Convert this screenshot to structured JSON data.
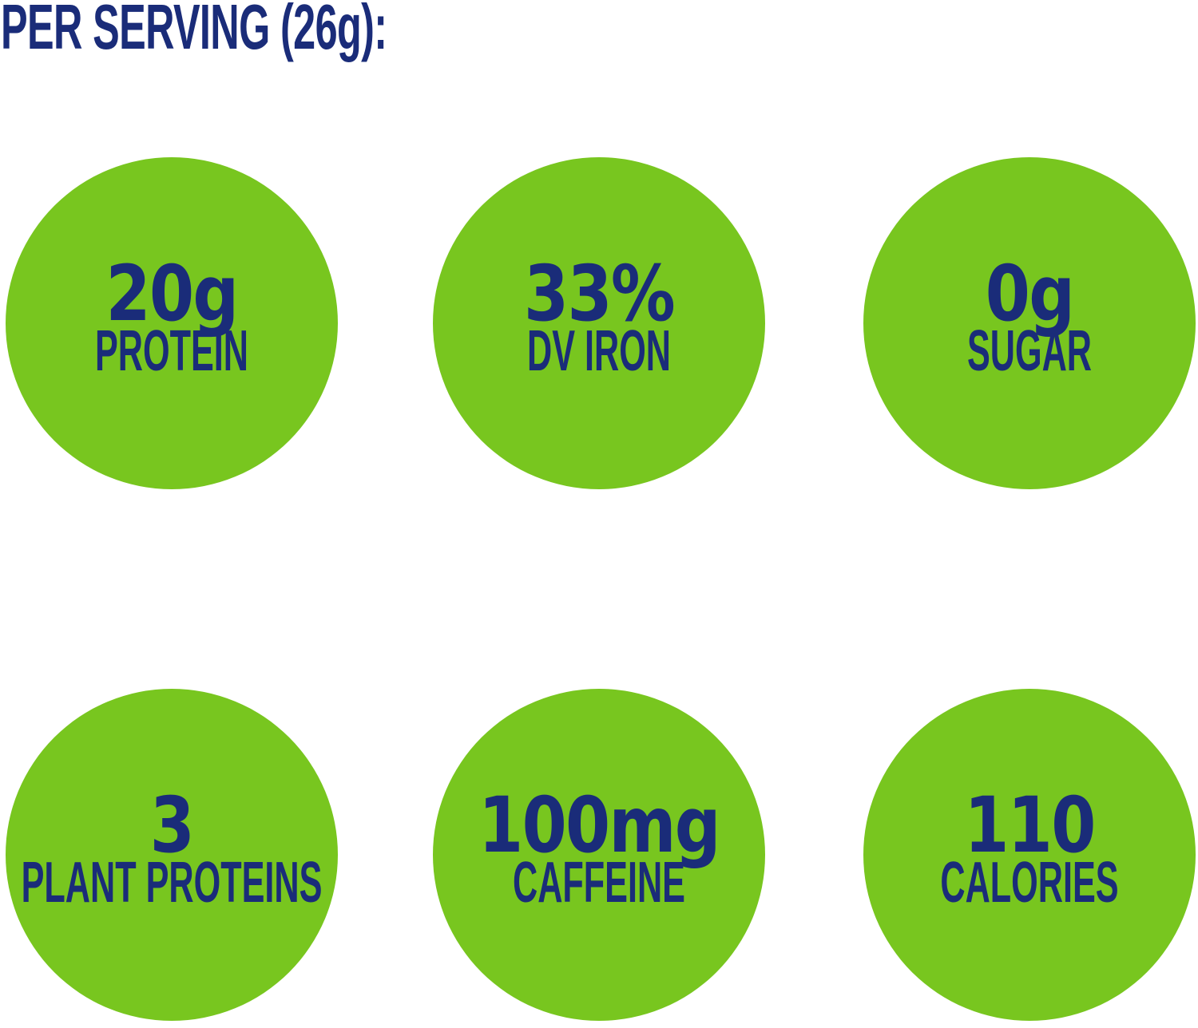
{
  "header": {
    "title": "PER SERVING (26g):"
  },
  "colors": {
    "green": "#78c61f",
    "navy": "#1a2c79"
  },
  "stats": [
    {
      "value": "20g",
      "label": "PROTEIN"
    },
    {
      "value": "33%",
      "label": "DV IRON"
    },
    {
      "value": "0g",
      "label": "SUGAR"
    },
    {
      "value": "3",
      "label": "PLANT PROTEINS"
    },
    {
      "value": "100mg",
      "label": "CAFFEINE"
    },
    {
      "value": "110",
      "label": "CALORIES"
    }
  ]
}
